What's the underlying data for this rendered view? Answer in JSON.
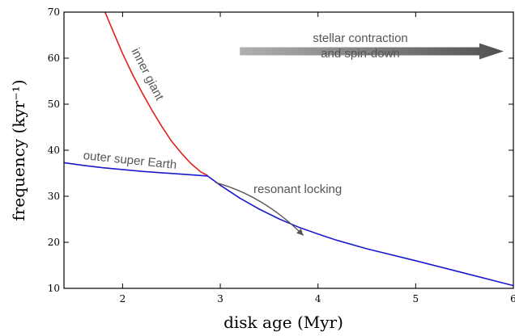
{
  "chart_data": {
    "type": "line",
    "title": "",
    "xlabel": "disk age (Myr)",
    "ylabel": "frequency (kyr⁻¹)",
    "xlim": [
      1.4,
      6
    ],
    "ylim": [
      10,
      70
    ],
    "xticks": [
      2,
      3,
      4,
      5,
      6
    ],
    "yticks": [
      10,
      20,
      30,
      40,
      50,
      60,
      70
    ],
    "grid": false,
    "legend": "none",
    "series": [
      {
        "name": "inner giant",
        "color": "#e02020",
        "x": [
          1.82,
          1.9,
          2.0,
          2.1,
          2.2,
          2.3,
          2.4,
          2.5,
          2.6,
          2.7,
          2.8,
          2.87
        ],
        "y": [
          70.0,
          66.0,
          61.0,
          56.5,
          52.5,
          48.7,
          45.2,
          42.0,
          39.4,
          37.1,
          35.3,
          34.5
        ]
      },
      {
        "name": "outer super Earth",
        "color": "#1a1acc",
        "x": [
          1.4,
          1.6,
          1.8,
          2.0,
          2.2,
          2.4,
          2.6,
          2.8,
          2.87,
          3.0,
          3.2,
          3.4,
          3.6,
          3.8,
          4.0,
          4.2,
          4.5,
          5.0,
          5.5,
          6.0
        ],
        "y": [
          37.3,
          36.7,
          36.2,
          35.8,
          35.4,
          35.1,
          34.8,
          34.5,
          34.4,
          32.4,
          29.6,
          27.2,
          25.1,
          23.3,
          21.8,
          20.4,
          18.6,
          16.0,
          13.3,
          10.6
        ]
      }
    ],
    "annotations": [
      {
        "id": "contraction_line1",
        "text": "stellar contraction"
      },
      {
        "id": "contraction_line2",
        "text": "and spin-down"
      },
      {
        "id": "locking",
        "text": "resonant locking"
      }
    ],
    "arrows": [
      {
        "id": "contraction",
        "color": "#555555",
        "x": [
          3.2,
          5.9
        ],
        "y": [
          61.5,
          61.5
        ]
      },
      {
        "id": "locking",
        "color": "#555555",
        "x": [
          2.95,
          3.85
        ],
        "y": [
          33.0,
          21.5
        ]
      }
    ]
  }
}
